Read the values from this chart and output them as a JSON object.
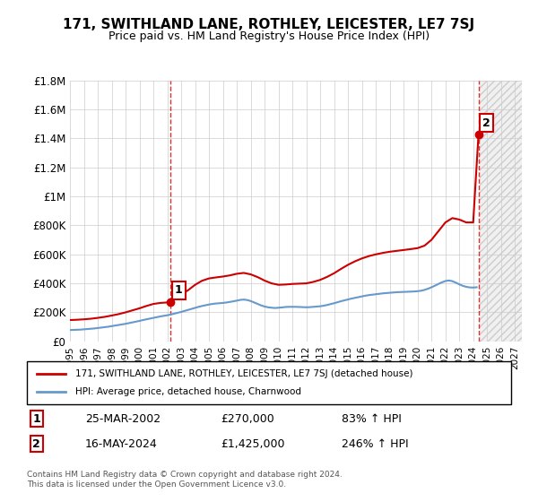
{
  "title": "171, SWITHLAND LANE, ROTHLEY, LEICESTER, LE7 7SJ",
  "subtitle": "Price paid vs. HM Land Registry's House Price Index (HPI)",
  "legend_property": "171, SWITHLAND LANE, ROTHLEY, LEICESTER, LE7 7SJ (detached house)",
  "legend_hpi": "HPI: Average price, detached house, Charnwood",
  "footnote": "Contains HM Land Registry data © Crown copyright and database right 2024.\nThis data is licensed under the Open Government Licence v3.0.",
  "ylim": [
    0,
    1800000
  ],
  "yticks": [
    0,
    200000,
    400000,
    600000,
    800000,
    1000000,
    1200000,
    1400000,
    1600000,
    1800000
  ],
  "ytick_labels": [
    "£0",
    "£200K",
    "£400K",
    "£600K",
    "£800K",
    "£1M",
    "£1.2M",
    "£1.4M",
    "£1.6M",
    "£1.8M"
  ],
  "xlim_start": 1995.0,
  "xlim_end": 2027.5,
  "xticks": [
    1995,
    1996,
    1997,
    1998,
    1999,
    2000,
    2001,
    2002,
    2003,
    2004,
    2005,
    2006,
    2007,
    2008,
    2009,
    2010,
    2011,
    2012,
    2013,
    2014,
    2015,
    2016,
    2017,
    2018,
    2019,
    2020,
    2021,
    2022,
    2023,
    2024,
    2025,
    2026,
    2027
  ],
  "sale1_x": 2002.23,
  "sale1_y": 270000,
  "sale1_label": "1",
  "sale1_date": "25-MAR-2002",
  "sale1_price": "£270,000",
  "sale1_hpi": "83% ↑ HPI",
  "sale2_x": 2024.38,
  "sale2_y": 1425000,
  "sale2_label": "2",
  "sale2_date": "16-MAY-2024",
  "sale2_price": "£1,425,000",
  "sale2_hpi": "246% ↑ HPI",
  "property_color": "#cc0000",
  "hpi_color": "#6699cc",
  "hpi_color_light": "#aaccee",
  "background_hatched_color": "#e8e8e8",
  "grid_color": "#cccccc",
  "sale_marker_color": "#cc0000",
  "hpi_x": [
    1995.0,
    1995.25,
    1995.5,
    1995.75,
    1996.0,
    1996.25,
    1996.5,
    1996.75,
    1997.0,
    1997.25,
    1997.5,
    1997.75,
    1998.0,
    1998.25,
    1998.5,
    1998.75,
    1999.0,
    1999.25,
    1999.5,
    1999.75,
    2000.0,
    2000.25,
    2000.5,
    2000.75,
    2001.0,
    2001.25,
    2001.5,
    2001.75,
    2002.0,
    2002.25,
    2002.5,
    2002.75,
    2003.0,
    2003.25,
    2003.5,
    2003.75,
    2004.0,
    2004.25,
    2004.5,
    2004.75,
    2005.0,
    2005.25,
    2005.5,
    2005.75,
    2006.0,
    2006.25,
    2006.5,
    2006.75,
    2007.0,
    2007.25,
    2007.5,
    2007.75,
    2008.0,
    2008.25,
    2008.5,
    2008.75,
    2009.0,
    2009.25,
    2009.5,
    2009.75,
    2010.0,
    2010.25,
    2010.5,
    2010.75,
    2011.0,
    2011.25,
    2011.5,
    2011.75,
    2012.0,
    2012.25,
    2012.5,
    2012.75,
    2013.0,
    2013.25,
    2013.5,
    2013.75,
    2014.0,
    2014.25,
    2014.5,
    2014.75,
    2015.0,
    2015.25,
    2015.5,
    2015.75,
    2016.0,
    2016.25,
    2016.5,
    2016.75,
    2017.0,
    2017.25,
    2017.5,
    2017.75,
    2018.0,
    2018.25,
    2018.5,
    2018.75,
    2019.0,
    2019.25,
    2019.5,
    2019.75,
    2020.0,
    2020.25,
    2020.5,
    2020.75,
    2021.0,
    2021.25,
    2021.5,
    2021.75,
    2022.0,
    2022.25,
    2022.5,
    2022.75,
    2023.0,
    2023.25,
    2023.5,
    2023.75,
    2024.0,
    2024.25
  ],
  "hpi_y": [
    78000,
    79000,
    80000,
    81000,
    83000,
    85000,
    87000,
    89000,
    92000,
    95000,
    98000,
    101000,
    105000,
    109000,
    113000,
    117000,
    121000,
    126000,
    131000,
    136000,
    141000,
    147000,
    152000,
    157000,
    162000,
    167000,
    172000,
    176000,
    180000,
    185000,
    191000,
    197000,
    203000,
    210000,
    217000,
    224000,
    231000,
    238000,
    244000,
    249000,
    254000,
    258000,
    261000,
    263000,
    265000,
    268000,
    272000,
    276000,
    281000,
    286000,
    288000,
    285000,
    278000,
    268000,
    258000,
    248000,
    240000,
    235000,
    232000,
    230000,
    232000,
    234000,
    237000,
    238000,
    238000,
    238000,
    237000,
    236000,
    235000,
    236000,
    238000,
    240000,
    242000,
    246000,
    251000,
    257000,
    263000,
    270000,
    277000,
    283000,
    289000,
    295000,
    300000,
    305000,
    310000,
    315000,
    319000,
    322000,
    325000,
    328000,
    331000,
    333000,
    335000,
    337000,
    339000,
    340000,
    341000,
    342000,
    343000,
    344000,
    346000,
    349000,
    355000,
    363000,
    373000,
    384000,
    396000,
    407000,
    416000,
    420000,
    415000,
    405000,
    393000,
    383000,
    376000,
    372000,
    371000,
    373000
  ],
  "property_x": [
    1995.0,
    1995.5,
    1996.0,
    1996.5,
    1997.0,
    1997.5,
    1998.0,
    1998.5,
    1999.0,
    1999.5,
    2000.0,
    2000.5,
    2001.0,
    2001.5,
    2002.23,
    2002.75,
    2003.5,
    2004.0,
    2004.5,
    2005.0,
    2005.5,
    2006.0,
    2006.5,
    2007.0,
    2007.5,
    2008.0,
    2008.5,
    2009.0,
    2009.5,
    2010.0,
    2010.5,
    2011.0,
    2011.5,
    2012.0,
    2012.5,
    2013.0,
    2013.5,
    2014.0,
    2014.5,
    2015.0,
    2015.5,
    2016.0,
    2016.5,
    2017.0,
    2017.5,
    2018.0,
    2018.5,
    2019.0,
    2019.5,
    2020.0,
    2020.5,
    2021.0,
    2021.5,
    2022.0,
    2022.5,
    2023.0,
    2023.5,
    2024.0,
    2024.38
  ],
  "property_y": [
    147000,
    149000,
    152000,
    156000,
    162000,
    169000,
    178000,
    188000,
    200000,
    214000,
    228000,
    244000,
    258000,
    265000,
    270000,
    308000,
    353000,
    390000,
    418000,
    434000,
    441000,
    447000,
    455000,
    466000,
    472000,
    462000,
    443000,
    419000,
    400000,
    390000,
    392000,
    396000,
    398000,
    400000,
    410000,
    424000,
    445000,
    470000,
    500000,
    528000,
    552000,
    572000,
    588000,
    600000,
    610000,
    618000,
    624000,
    630000,
    636000,
    643000,
    660000,
    700000,
    760000,
    820000,
    850000,
    840000,
    820000,
    820000,
    1425000
  ]
}
